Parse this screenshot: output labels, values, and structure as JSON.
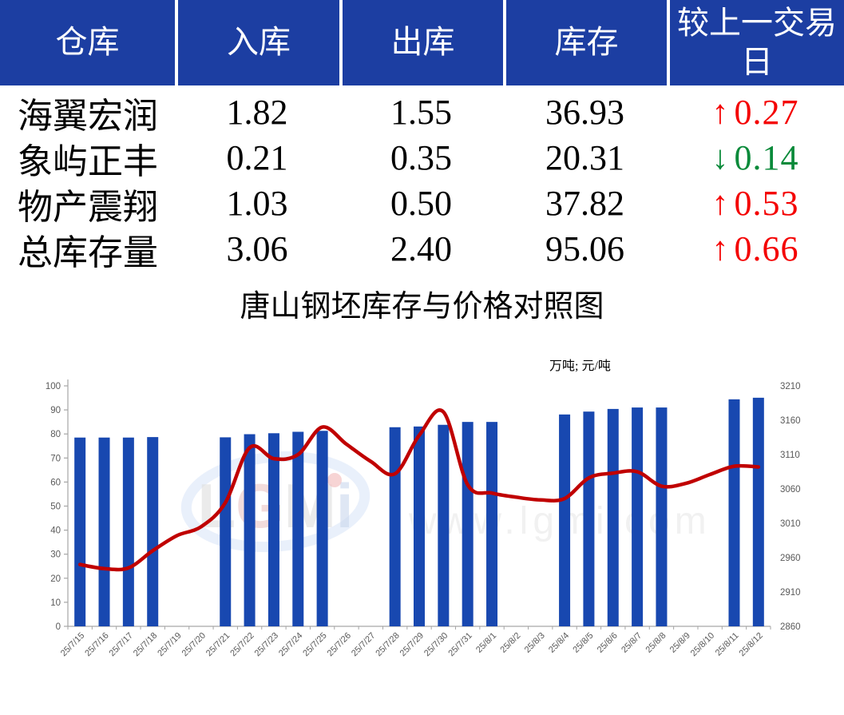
{
  "table": {
    "headers": [
      "仓库",
      "入库",
      "出库",
      "库存",
      "较上一交易日"
    ],
    "rows": [
      {
        "warehouse": "海翼宏润",
        "inbound": "1.82",
        "outbound": "1.55",
        "stock": "36.93",
        "arrow": "↑",
        "change": "0.27",
        "direction": "up"
      },
      {
        "warehouse": "象屿正丰",
        "inbound": "0.21",
        "outbound": "0.35",
        "stock": "20.31",
        "arrow": "↓",
        "change": "0.14",
        "direction": "down"
      },
      {
        "warehouse": "物产震翔",
        "inbound": "1.03",
        "outbound": "0.50",
        "stock": "37.82",
        "arrow": "↑",
        "change": "0.53",
        "direction": "up"
      },
      {
        "warehouse": "总库存量",
        "inbound": "3.06",
        "outbound": "2.40",
        "stock": "95.06",
        "arrow": "↑",
        "change": "0.66",
        "direction": "up"
      }
    ],
    "colors": {
      "header_bg": "#1C3EA2",
      "up": "#F40000",
      "down": "#0A8A3A"
    }
  },
  "chart_data": {
    "type": "bar",
    "title": "唐山钢坯库存与价格对照图",
    "unit_label": "万吨; 元/吨",
    "categories": [
      "25/7/15",
      "25/7/16",
      "25/7/17",
      "25/7/18",
      "25/7/19",
      "25/7/20",
      "25/7/21",
      "25/7/22",
      "25/7/23",
      "25/7/24",
      "25/7/25",
      "25/7/26",
      "25/7/27",
      "25/7/28",
      "25/7/29",
      "25/7/30",
      "25/7/31",
      "25/8/1",
      "25/8/2",
      "25/8/3",
      "25/8/4",
      "25/8/5",
      "25/8/6",
      "25/8/7",
      "25/8/8",
      "25/8/9",
      "25/8/10",
      "25/8/11",
      "25/8/12"
    ],
    "series": [
      {
        "name": "库存",
        "type": "bar",
        "axis": "left",
        "color": "#1848B0",
        "values": [
          78.5,
          78.5,
          78.5,
          78.7,
          null,
          null,
          78.6,
          79.9,
          80.3,
          80.9,
          81.3,
          null,
          null,
          82.8,
          83.1,
          83.8,
          85.0,
          85.0,
          null,
          null,
          88.1,
          89.3,
          90.4,
          91.0,
          91.0,
          null,
          null,
          94.4,
          95.06
        ]
      },
      {
        "name": "价格",
        "type": "line",
        "axis": "right",
        "color": "#C00000",
        "values": [
          2950,
          2944,
          2945,
          2970,
          2992,
          3005,
          3040,
          3120,
          3104,
          3110,
          3150,
          3125,
          3100,
          3082,
          3138,
          3172,
          3066,
          3054,
          3048,
          3044,
          3046,
          3076,
          3083,
          3085,
          3064,
          3068,
          3081,
          3093,
          3092
        ]
      }
    ],
    "left_axis": {
      "min": 0,
      "max": 100,
      "step": 10
    },
    "right_axis": {
      "min": 2860,
      "max": 3210,
      "step": 50
    },
    "grid": false,
    "legend": "none",
    "axis_text_color": "#595959",
    "watermark": {
      "logo_text": "LGMi",
      "url_text": "www.lgmi.com"
    }
  }
}
